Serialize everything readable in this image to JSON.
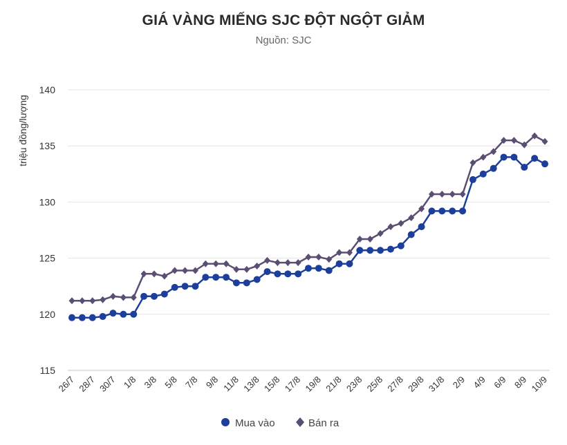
{
  "chart_data": {
    "type": "line",
    "title": "GIÁ VÀNG MIẾNG SJC ĐỘT NGỘT GIẢM",
    "subtitle": "Nguồn: SJC",
    "ylabel": "triệu đồng/lượng",
    "xlabel": "",
    "ylim": [
      115,
      140
    ],
    "yticks": [
      115,
      120,
      125,
      130,
      135,
      140
    ],
    "grid": true,
    "legend_position": "bottom",
    "x": [
      "26/7",
      "27/7",
      "28/7",
      "29/7",
      "30/7",
      "31/7",
      "1/8",
      "2/8",
      "3/8",
      "4/8",
      "5/8",
      "6/8",
      "7/8",
      "8/8",
      "9/8",
      "10/8",
      "11/8",
      "12/8",
      "13/8",
      "14/8",
      "15/8",
      "16/8",
      "17/8",
      "18/8",
      "19/8",
      "20/8",
      "21/8",
      "22/8",
      "23/8",
      "24/8",
      "25/8",
      "26/8",
      "27/8",
      "28/8",
      "29/8",
      "30/8",
      "31/8",
      "1/9",
      "2/9",
      "3/9",
      "4/9",
      "5/9",
      "6/9",
      "7/9",
      "8/9",
      "9/9",
      "10/9"
    ],
    "xtick_labels": [
      "26/7",
      "28/7",
      "30/7",
      "1/8",
      "3/8",
      "5/8",
      "7/8",
      "9/8",
      "11/8",
      "13/8",
      "15/8",
      "17/8",
      "19/8",
      "21/8",
      "23/8",
      "25/8",
      "27/8",
      "29/8",
      "31/8",
      "2/9",
      "4/9",
      "6/9",
      "8/9",
      "10/9"
    ],
    "series": [
      {
        "name": "Mua vào",
        "color": "#1b3f9a",
        "marker": "circle",
        "values": [
          119.7,
          119.7,
          119.7,
          119.8,
          120.1,
          120.0,
          120.0,
          121.6,
          121.6,
          121.8,
          122.4,
          122.5,
          122.5,
          123.3,
          123.3,
          123.3,
          122.8,
          122.8,
          123.1,
          123.8,
          123.6,
          123.6,
          123.6,
          124.1,
          124.1,
          123.9,
          124.5,
          124.5,
          125.7,
          125.7,
          125.7,
          125.8,
          126.1,
          127.1,
          127.8,
          129.2,
          129.2,
          129.2,
          129.2,
          132.0,
          132.5,
          133.0,
          134.0,
          134.0,
          133.1,
          133.9,
          133.4
        ]
      },
      {
        "name": "Bán ra",
        "color": "#5a4f72",
        "marker": "diamond",
        "values": [
          121.2,
          121.2,
          121.2,
          121.3,
          121.6,
          121.5,
          121.5,
          123.6,
          123.6,
          123.4,
          123.9,
          123.9,
          123.9,
          124.5,
          124.5,
          124.5,
          124.0,
          124.0,
          124.3,
          124.8,
          124.6,
          124.6,
          124.6,
          125.1,
          125.1,
          124.9,
          125.5,
          125.5,
          126.7,
          126.7,
          127.2,
          127.8,
          128.1,
          128.6,
          129.4,
          130.7,
          130.7,
          130.7,
          130.7,
          133.5,
          134.0,
          134.5,
          135.5,
          135.5,
          135.1,
          135.9,
          135.4
        ]
      }
    ]
  }
}
